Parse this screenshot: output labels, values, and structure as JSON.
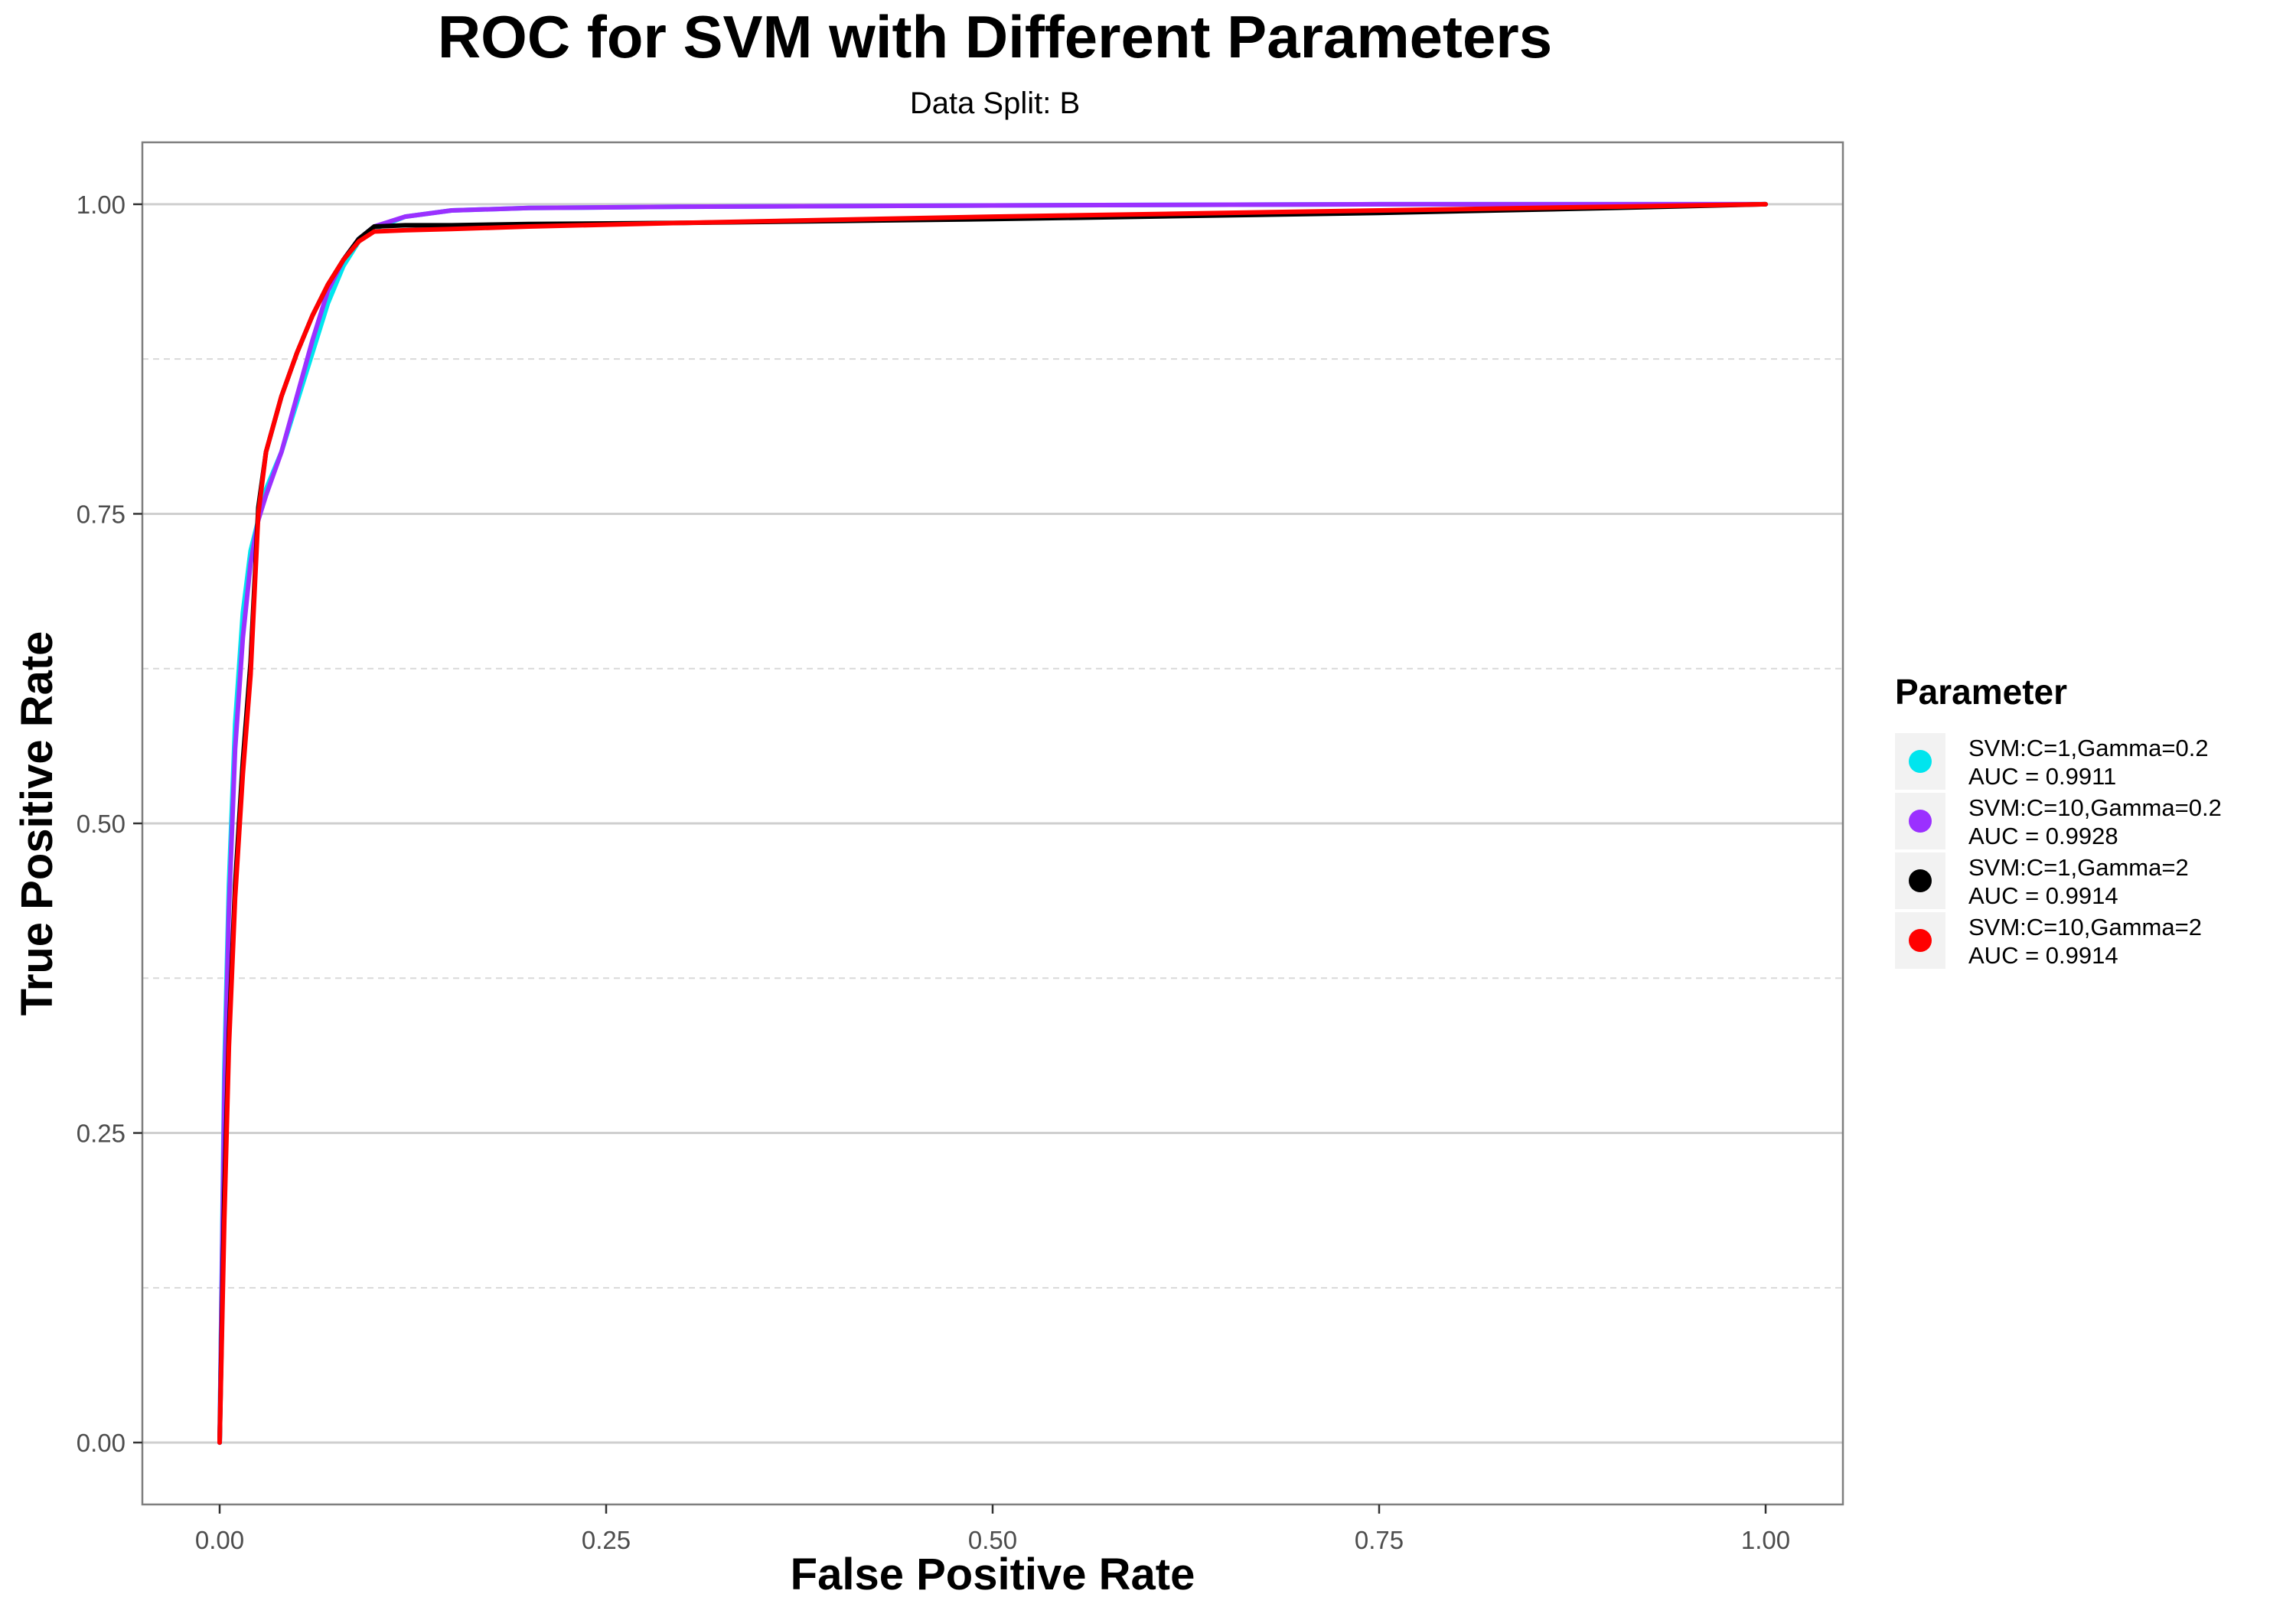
{
  "chart_data": {
    "type": "line",
    "title": "ROC for SVM with Different Parameters",
    "subtitle": "Data Split: B",
    "xlabel": "False Positive Rate",
    "ylabel": "True Positive Rate",
    "xlim": [
      -0.05,
      1.05
    ],
    "ylim": [
      -0.05,
      1.05
    ],
    "x_ticks": [
      "0.00",
      "0.25",
      "0.50",
      "0.75",
      "1.00"
    ],
    "y_ticks": [
      "0.00",
      "0.25",
      "0.50",
      "0.75",
      "1.00"
    ],
    "grid": true,
    "legend": {
      "title": "Parameter",
      "position": "right"
    },
    "series": [
      {
        "name": "SVM:C=1,Gamma=0.2",
        "auc_label": "AUC = 0.9911",
        "color": "#00e5ee",
        "x": [
          0,
          0.003,
          0.006,
          0.01,
          0.015,
          0.02,
          0.025,
          0.03,
          0.04,
          0.05,
          0.06,
          0.07,
          0.08,
          0.09,
          0.1,
          0.12,
          0.15,
          0.2,
          0.3,
          0.5,
          0.75,
          1.0
        ],
        "y": [
          0,
          0.3,
          0.45,
          0.58,
          0.67,
          0.72,
          0.745,
          0.77,
          0.8,
          0.84,
          0.88,
          0.92,
          0.95,
          0.97,
          0.98,
          0.99,
          0.995,
          0.997,
          0.998,
          0.999,
          1.0,
          1.0
        ]
      },
      {
        "name": "SVM:C=10,Gamma=0.2",
        "auc_label": "AUC = 0.9928",
        "color": "#9b30ff",
        "x": [
          0,
          0.003,
          0.006,
          0.01,
          0.015,
          0.02,
          0.025,
          0.03,
          0.04,
          0.05,
          0.06,
          0.07,
          0.08,
          0.09,
          0.1,
          0.12,
          0.15,
          0.2,
          0.3,
          0.5,
          0.75,
          1.0
        ],
        "y": [
          0,
          0.28,
          0.43,
          0.56,
          0.65,
          0.71,
          0.745,
          0.765,
          0.8,
          0.845,
          0.89,
          0.93,
          0.955,
          0.972,
          0.982,
          0.99,
          0.995,
          0.997,
          0.998,
          0.999,
          1.0,
          1.0
        ]
      },
      {
        "name": "SVM:C=1,Gamma=2",
        "auc_label": "AUC = 0.9914",
        "color": "#000000",
        "x": [
          0,
          0.003,
          0.006,
          0.01,
          0.015,
          0.02,
          0.025,
          0.03,
          0.04,
          0.05,
          0.06,
          0.07,
          0.08,
          0.09,
          0.1,
          0.12,
          0.15,
          0.2,
          0.3,
          0.5,
          0.75,
          0.9,
          1.0
        ],
        "y": [
          0,
          0.2,
          0.33,
          0.45,
          0.55,
          0.63,
          0.755,
          0.8,
          0.845,
          0.88,
          0.91,
          0.935,
          0.955,
          0.972,
          0.982,
          0.983,
          0.983,
          0.984,
          0.985,
          0.988,
          0.993,
          0.997,
          1.0
        ]
      },
      {
        "name": "SVM:C=10,Gamma=2",
        "auc_label": "AUC = 0.9914",
        "color": "#ff0000",
        "x": [
          0,
          0.003,
          0.006,
          0.01,
          0.015,
          0.02,
          0.025,
          0.03,
          0.04,
          0.05,
          0.06,
          0.07,
          0.08,
          0.09,
          0.1,
          0.12,
          0.15,
          0.2,
          0.3,
          0.5,
          0.75,
          0.9,
          1.0
        ],
        "y": [
          0,
          0.18,
          0.32,
          0.44,
          0.54,
          0.62,
          0.75,
          0.8,
          0.845,
          0.88,
          0.91,
          0.935,
          0.955,
          0.97,
          0.978,
          0.979,
          0.98,
          0.982,
          0.985,
          0.99,
          0.995,
          0.998,
          1.0
        ]
      }
    ]
  }
}
